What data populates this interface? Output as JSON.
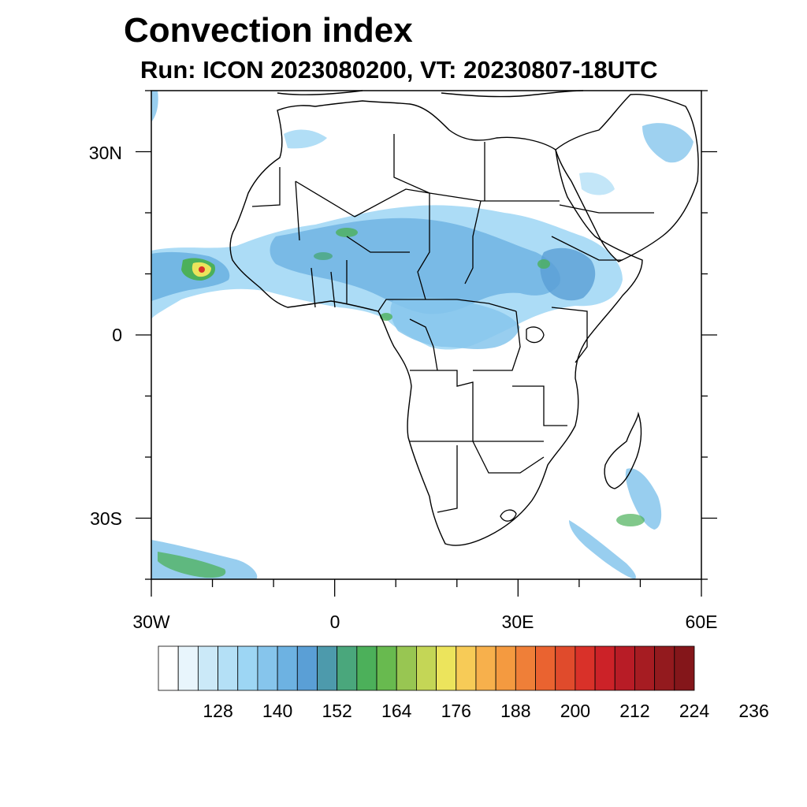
{
  "header": {
    "title": "Convection index",
    "subtitle": "Run: ICON 2023080200,  VT: 20230807-18UTC"
  },
  "axes": {
    "lat_labels": [
      {
        "key": "n30",
        "text": "30N",
        "lat": 30
      },
      {
        "key": "eq",
        "text": "0",
        "lat": 0
      },
      {
        "key": "s30",
        "text": "30S",
        "lat": -30
      }
    ],
    "lon_labels": [
      {
        "key": "w30",
        "text": "30W",
        "lon": -30
      },
      {
        "key": "zero",
        "text": "0",
        "lon": 0
      },
      {
        "key": "e30",
        "text": "30E",
        "lon": 30
      },
      {
        "key": "e60",
        "text": "60E",
        "lon": 60
      }
    ],
    "lon_range": [
      -30,
      60
    ],
    "lat_range": [
      -40,
      40
    ]
  },
  "colorbar": {
    "labels": [
      "128",
      "140",
      "152",
      "164",
      "176",
      "188",
      "200",
      "212",
      "224",
      "236"
    ],
    "colors": [
      "#ffffff",
      "#e8f5fc",
      "#cbe9f8",
      "#b4e0f6",
      "#9dd6f4",
      "#86c5ec",
      "#6db2e2",
      "#5a9fd6",
      "#4d9aac",
      "#4aa77c",
      "#4cb05a",
      "#68ba4f",
      "#98c652",
      "#c4d656",
      "#ece45c",
      "#f7cb57",
      "#f7b04c",
      "#f49a40",
      "#ef7f38",
      "#ea6330",
      "#e04b2c",
      "#d93129",
      "#cc2228",
      "#b81c26",
      "#a61c22",
      "#931a1e",
      "#84161a"
    ]
  },
  "map": {
    "regions": "Africa, Arabian Peninsula, Madagascar",
    "field_colors": {
      "light": "#b4e0f6",
      "mid": "#86c5ec",
      "strong": "#5a9fd6",
      "green": "#4cb05a",
      "yellow": "#ece45c",
      "orange": "#f49a40",
      "red": "#d93129"
    }
  }
}
